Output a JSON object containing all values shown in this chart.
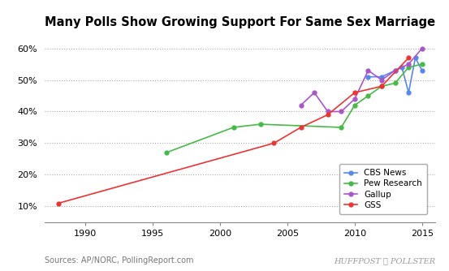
{
  "title": "Many Polls Show Growing Support For Same Sex Marriage",
  "source_left": "Sources: AP/NORC, PollingReport.com",
  "source_right": "HUFFPOST ✶ POLLSTER",
  "xlim": [
    1987,
    2016
  ],
  "ylim": [
    5,
    65
  ],
  "yticks": [
    10,
    20,
    30,
    40,
    50,
    60
  ],
  "xticks": [
    1990,
    1995,
    2000,
    2005,
    2010,
    2015
  ],
  "series": {
    "CBS News": {
      "color": "#5588ee",
      "marker": "o",
      "data": [
        [
          2011,
          51
        ],
        [
          2012,
          51
        ],
        [
          2013,
          53
        ],
        [
          2013.5,
          54
        ],
        [
          2014,
          46
        ],
        [
          2014.5,
          57
        ],
        [
          2015,
          53
        ]
      ]
    },
    "Pew Research": {
      "color": "#44bb44",
      "marker": "o",
      "data": [
        [
          1996,
          27
        ],
        [
          2001,
          35
        ],
        [
          2003,
          36
        ],
        [
          2009,
          35
        ],
        [
          2010,
          42
        ],
        [
          2011,
          45
        ],
        [
          2012,
          48
        ],
        [
          2013,
          49
        ],
        [
          2014,
          54
        ],
        [
          2015,
          55
        ]
      ]
    },
    "Gallup": {
      "color": "#aa55cc",
      "marker": "o",
      "data": [
        [
          2006,
          42
        ],
        [
          2007,
          46
        ],
        [
          2008,
          40
        ],
        [
          2009,
          40
        ],
        [
          2010,
          44
        ],
        [
          2011,
          53
        ],
        [
          2012,
          50
        ],
        [
          2013,
          53
        ],
        [
          2014,
          55
        ],
        [
          2015,
          60
        ]
      ]
    },
    "GSS": {
      "color": "#ee3333",
      "marker": "o",
      "data": [
        [
          1988,
          11
        ],
        [
          2004,
          30
        ],
        [
          2006,
          35
        ],
        [
          2008,
          39
        ],
        [
          2010,
          46
        ],
        [
          2012,
          48
        ],
        [
          2014,
          57
        ]
      ]
    }
  }
}
